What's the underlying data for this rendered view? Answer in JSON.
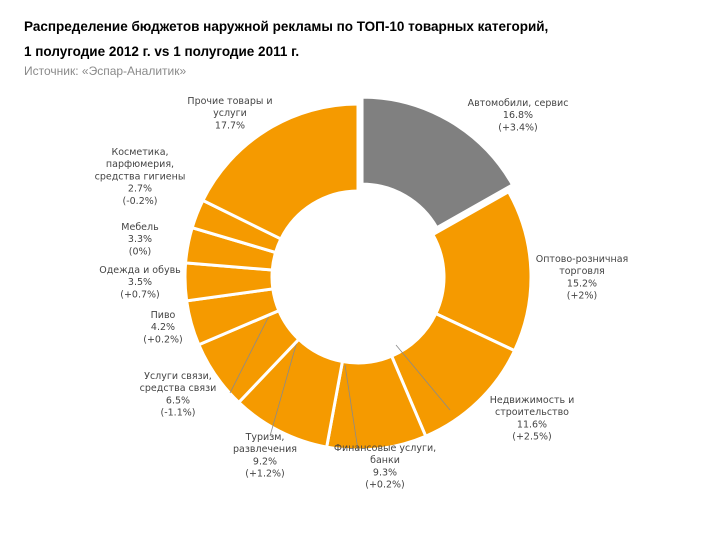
{
  "header": {
    "title_line1": "Распределение бюджетов наружной рекламы по ТОП-10 товарных категорий,",
    "title_line2": "1 полугодие 2012 г. vs 1 полугодие 2011 г.",
    "source": "Источник: «Эспар-Аналитик»"
  },
  "chart_data": {
    "type": "pie",
    "variant": "donut",
    "colors": {
      "highlight": "#808080",
      "default": "#f59a00",
      "border": "#ffffff",
      "leader": "#8a8a8a"
    },
    "slices": [
      {
        "label": [
          "Автомобили, сервис"
        ],
        "value": 16.8,
        "value_text": "16.8%",
        "change": "(+3.4%)",
        "color": "#808080",
        "exploded": true
      },
      {
        "label": [
          "Оптово-розничная",
          "торговля"
        ],
        "value": 15.2,
        "value_text": "15.2%",
        "change": "(+2%)",
        "color": "#f59a00"
      },
      {
        "label": [
          "Недвижимость и",
          "строительство"
        ],
        "value": 11.6,
        "value_text": "11.6%",
        "change": "(+2.5%)",
        "color": "#f59a00"
      },
      {
        "label": [
          "Финансовые услуги,",
          "банки"
        ],
        "value": 9.3,
        "value_text": "9.3%",
        "change": "(+0.2%)",
        "color": "#f59a00"
      },
      {
        "label": [
          "Туризм,",
          "развлечения"
        ],
        "value": 9.2,
        "value_text": "9.2%",
        "change": "(+1.2%)",
        "color": "#f59a00"
      },
      {
        "label": [
          "Услуги связи,",
          "средства связи"
        ],
        "value": 6.5,
        "value_text": "6.5%",
        "change": "(-1.1%)",
        "color": "#f59a00"
      },
      {
        "label": [
          "Пиво"
        ],
        "value": 4.2,
        "value_text": "4.2%",
        "change": "(+0.2%)",
        "color": "#f59a00"
      },
      {
        "label": [
          "Одежда и обувь"
        ],
        "value": 3.5,
        "value_text": "3.5%",
        "change": "(+0.7%)",
        "color": "#f59a00"
      },
      {
        "label": [
          "Мебель"
        ],
        "value": 3.3,
        "value_text": "3.3%",
        "change": "(0%)",
        "color": "#f59a00"
      },
      {
        "label": [
          "Косметика,",
          "парфюмерия,",
          "средства гигиены"
        ],
        "value": 2.7,
        "value_text": "2.7%",
        "change": "(-0.2%)",
        "color": "#f59a00"
      },
      {
        "label": [
          "Прочие товары и",
          "услуги"
        ],
        "value": 17.7,
        "value_text": "17.7%",
        "change": "",
        "color": "#f59a00"
      }
    ]
  }
}
